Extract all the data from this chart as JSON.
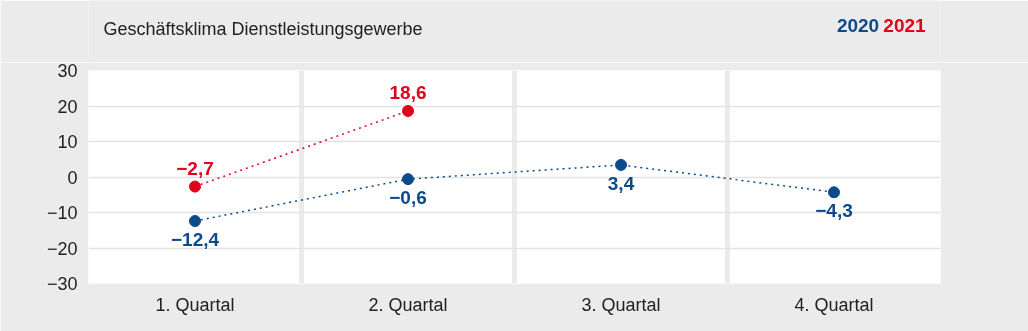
{
  "chart_data": {
    "type": "line",
    "title": "Geschäftsklima Dienstleistungsgewerbe",
    "categories": [
      "1. Quartal",
      "2. Quartal",
      "3. Quartal",
      "4. Quartal"
    ],
    "series": [
      {
        "name": "2020",
        "color": "#0d4a8a",
        "values": [
          -12.4,
          -0.6,
          3.4,
          -4.3
        ],
        "value_labels": [
          "−12,4",
          "−0,6",
          "3,4",
          "−4,3"
        ]
      },
      {
        "name": "2021",
        "color": "#e2001a",
        "values": [
          -2.7,
          18.6,
          null,
          null
        ],
        "value_labels": [
          "−2,7",
          "18,6",
          null,
          null
        ]
      }
    ],
    "ylim": [
      -30,
      30
    ],
    "yticks": [
      -30,
      -20,
      -10,
      0,
      10,
      20,
      30
    ],
    "grid": true,
    "marker": "circle",
    "line_style": "dotted"
  }
}
